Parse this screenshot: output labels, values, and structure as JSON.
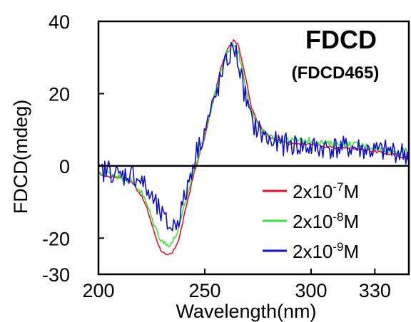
{
  "chart_data": {
    "type": "line",
    "xlabel": "Wavelength(nm)",
    "ylabel": "FDCD(mdeg)",
    "xlim": [
      200,
      346
    ],
    "ylim": [
      -30,
      40
    ],
    "x_ticks": [
      {
        "value": 200,
        "label": "200"
      },
      {
        "value": 250,
        "label": "250"
      },
      {
        "value": 300,
        "label": "300"
      },
      {
        "value": 330,
        "label": "330"
      }
    ],
    "y_ticks": [
      {
        "value": 40,
        "label": "40"
      },
      {
        "value": 20,
        "label": "20"
      },
      {
        "value": 0,
        "label": "0"
      },
      {
        "value": -20,
        "label": "-20"
      },
      {
        "value": -30,
        "label": "-30"
      }
    ],
    "annotations": {
      "main": "FDCD",
      "sub": "(FDCD465)"
    },
    "legend_position": "bottom-right",
    "series": [
      {
        "name_base": "2x10",
        "name_exp": "-7",
        "name_unit": "M",
        "color": "#e8102a",
        "noise": 0.4,
        "x": [
          200,
          205,
          210,
          215,
          220,
          223,
          226,
          229,
          232,
          235,
          238,
          241,
          245,
          250,
          254,
          258,
          261,
          264,
          266,
          268,
          270,
          272,
          275,
          280,
          285,
          290,
          300,
          310,
          320,
          330,
          340,
          346
        ],
        "y": [
          -2,
          -3,
          -3,
          -4,
          -8,
          -12,
          -18,
          -23,
          -25,
          -24,
          -20,
          -12,
          -2,
          8,
          18,
          28,
          33,
          35,
          33,
          28,
          22,
          16,
          12,
          8,
          7,
          6,
          6,
          5,
          5,
          4,
          3,
          2
        ]
      },
      {
        "name_base": "2x10",
        "name_exp": "-8",
        "name_unit": "M",
        "color": "#3ee23e",
        "noise": 0.9,
        "x": [
          200,
          205,
          210,
          215,
          220,
          223,
          226,
          229,
          232,
          235,
          238,
          241,
          245,
          250,
          254,
          258,
          261,
          264,
          266,
          268,
          270,
          272,
          275,
          280,
          285,
          290,
          300,
          310,
          320,
          330,
          340,
          346
        ],
        "y": [
          -2,
          -2,
          -3,
          -4,
          -7,
          -11,
          -16,
          -20,
          -22,
          -21,
          -17,
          -10,
          -1,
          9,
          18,
          27,
          32,
          34,
          31,
          26,
          20,
          15,
          11,
          8,
          7,
          7,
          7,
          6,
          6,
          5,
          4,
          4
        ]
      },
      {
        "name_base": "2x10",
        "name_exp": "-9",
        "name_unit": "M",
        "color": "#1111cc",
        "noise": 3.2,
        "x": [
          200,
          205,
          210,
          215,
          220,
          223,
          226,
          229,
          232,
          235,
          238,
          241,
          245,
          250,
          254,
          258,
          261,
          264,
          266,
          268,
          270,
          272,
          275,
          280,
          285,
          290,
          300,
          310,
          320,
          330,
          340,
          346
        ],
        "y": [
          -2,
          -1,
          -3,
          -2,
          -4,
          -7,
          -10,
          -13,
          -16,
          -17,
          -14,
          -8,
          2,
          10,
          17,
          25,
          30,
          33,
          28,
          22,
          17,
          12,
          10,
          7,
          6,
          6,
          5,
          5,
          5,
          4,
          4,
          3
        ]
      }
    ]
  }
}
